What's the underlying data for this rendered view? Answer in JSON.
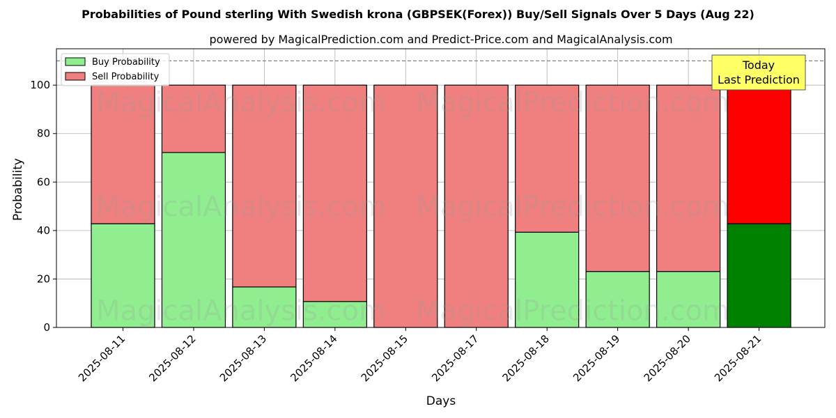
{
  "chart_data": {
    "type": "bar",
    "stacked": true,
    "title": "Probabilities of Pound sterling With Swedish krona (GBPSEK(Forex)) Buy/Sell Signals Over 5 Days (Aug 22)",
    "subtitle": "powered by MagicalPrediction.com and Predict-Price.com and MagicalAnalysis.com",
    "xlabel": "Days",
    "ylabel": "Probability",
    "ylim": [
      0,
      115
    ],
    "yticks": [
      0,
      20,
      40,
      60,
      80,
      100
    ],
    "reference_line": 110,
    "grid": true,
    "legend_position": "top-left",
    "categories": [
      "2025-08-11",
      "2025-08-12",
      "2025-08-13",
      "2025-08-14",
      "2025-08-15",
      "2025-08-17",
      "2025-08-18",
      "2025-08-19",
      "2025-08-20",
      "2025-08-21"
    ],
    "series": [
      {
        "name": "Buy Probability",
        "values": [
          42.8,
          72.2,
          16.7,
          10.7,
          0,
          0,
          39.3,
          23.1,
          23.1,
          42.8
        ],
        "color": "#90ee90",
        "highlight_color": "#008000"
      },
      {
        "name": "Sell Probability",
        "values": [
          57.2,
          27.8,
          83.3,
          89.3,
          100,
          100,
          60.7,
          76.9,
          76.9,
          57.2
        ],
        "color": "#f08080",
        "highlight_color": "#ff0000"
      }
    ],
    "highlight_index": 9,
    "annotation": {
      "lines": [
        "Today",
        "Last Prediction"
      ],
      "background": "#ffff66"
    },
    "watermarks": [
      "MagicalAnalysis.com",
      "MagicalPrediction.com"
    ]
  }
}
